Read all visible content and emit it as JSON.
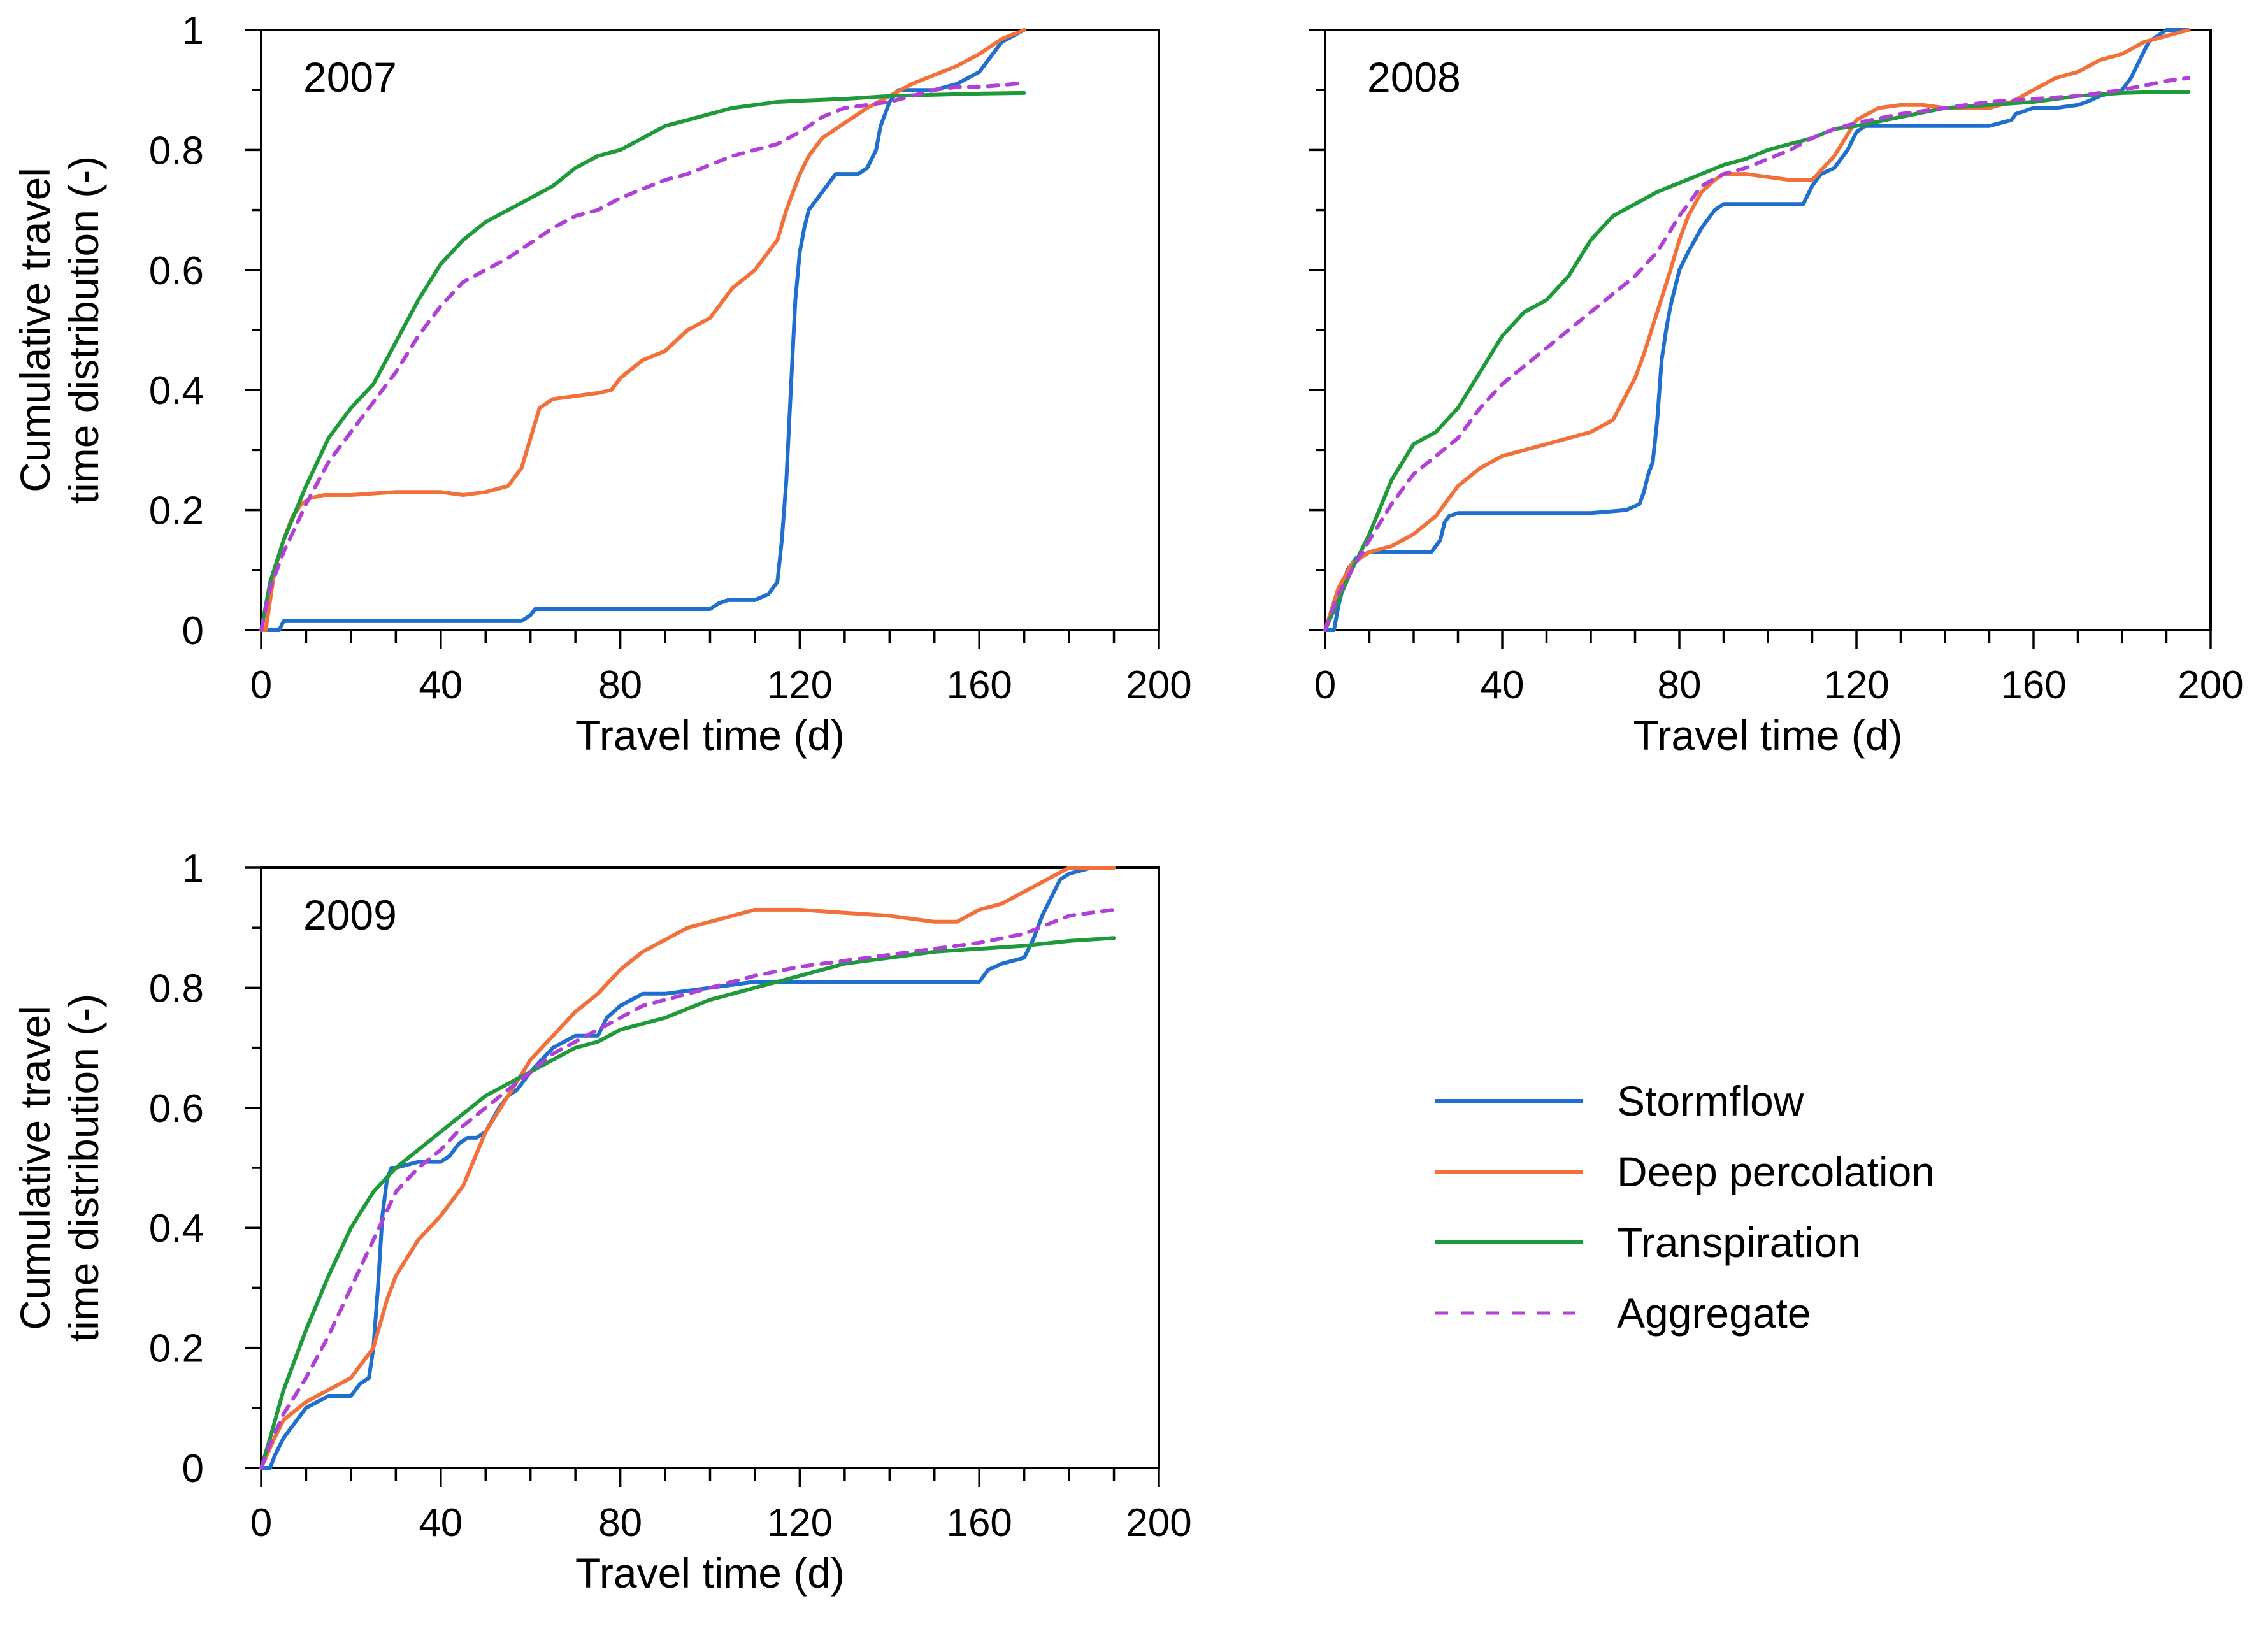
{
  "colors": {
    "Stormflow": "#1f6fcf",
    "Deep percolation": "#f2703a",
    "Transpiration": "#1f9a3a",
    "Aggregate": "#b040d8"
  },
  "legend": [
    {
      "name": "Stormflow",
      "dashed": false
    },
    {
      "name": "Deep percolation",
      "dashed": false
    },
    {
      "name": "Transpiration",
      "dashed": false
    },
    {
      "name": "Aggregate",
      "dashed": true
    }
  ],
  "chart_data": [
    {
      "type": "line",
      "title": "2007",
      "xlabel": "Travel time (d)",
      "ylabel": [
        "Cumulative travel",
        "time distribution (-)"
      ],
      "xlim": [
        0,
        200
      ],
      "ylim": [
        0,
        1
      ],
      "xticks": [
        0,
        40,
        80,
        120,
        160,
        200
      ],
      "yticks": [
        0,
        0.2,
        0.4,
        0.6,
        0.8,
        1
      ],
      "ytick_labels": [
        "0",
        "0.2",
        "0.4",
        "0.6",
        "0.8",
        "1"
      ],
      "series": [
        {
          "name": "Stormflow",
          "x": [
            0,
            4,
            5,
            6,
            58,
            60,
            61,
            100,
            102,
            104,
            110,
            113,
            115,
            116,
            117,
            118,
            119,
            120,
            121,
            122,
            123,
            124,
            126,
            128,
            130,
            133,
            135,
            137,
            138,
            139,
            140,
            141,
            142,
            145,
            150,
            155,
            160,
            165,
            170
          ],
          "y": [
            0,
            0,
            0.015,
            0.015,
            0.015,
            0.025,
            0.035,
            0.035,
            0.045,
            0.05,
            0.05,
            0.06,
            0.08,
            0.15,
            0.25,
            0.4,
            0.55,
            0.63,
            0.67,
            0.7,
            0.71,
            0.72,
            0.74,
            0.76,
            0.76,
            0.76,
            0.77,
            0.8,
            0.84,
            0.86,
            0.88,
            0.89,
            0.9,
            0.9,
            0.9,
            0.91,
            0.93,
            0.98,
            1.0
          ]
        },
        {
          "name": "Deep percolation",
          "x": [
            0,
            1,
            2,
            3,
            5,
            7,
            9,
            11,
            14,
            20,
            30,
            40,
            45,
            50,
            55,
            58,
            60,
            62,
            65,
            70,
            75,
            78,
            80,
            85,
            90,
            95,
            100,
            105,
            110,
            112,
            115,
            117,
            118,
            119,
            120,
            122,
            125,
            130,
            135,
            140,
            145,
            150,
            155,
            160,
            165,
            170
          ],
          "y": [
            0,
            0,
            0.05,
            0.1,
            0.15,
            0.19,
            0.21,
            0.22,
            0.225,
            0.225,
            0.23,
            0.23,
            0.225,
            0.23,
            0.24,
            0.27,
            0.32,
            0.37,
            0.385,
            0.39,
            0.395,
            0.4,
            0.42,
            0.45,
            0.465,
            0.5,
            0.52,
            0.57,
            0.6,
            0.62,
            0.65,
            0.7,
            0.72,
            0.74,
            0.76,
            0.79,
            0.82,
            0.845,
            0.87,
            0.89,
            0.91,
            0.925,
            0.94,
            0.96,
            0.985,
            1.0
          ]
        },
        {
          "name": "Transpiration",
          "x": [
            0,
            2,
            5,
            10,
            15,
            20,
            25,
            30,
            35,
            40,
            45,
            50,
            55,
            60,
            65,
            70,
            75,
            80,
            85,
            90,
            95,
            100,
            105,
            110,
            115,
            120,
            130,
            140,
            150,
            160,
            170
          ],
          "y": [
            0,
            0.08,
            0.15,
            0.24,
            0.32,
            0.37,
            0.41,
            0.48,
            0.55,
            0.61,
            0.65,
            0.68,
            0.7,
            0.72,
            0.74,
            0.77,
            0.79,
            0.8,
            0.82,
            0.84,
            0.85,
            0.86,
            0.87,
            0.875,
            0.88,
            0.882,
            0.885,
            0.89,
            0.892,
            0.894,
            0.895
          ]
        },
        {
          "name": "Aggregate",
          "x": [
            0,
            2,
            5,
            10,
            15,
            20,
            25,
            30,
            35,
            40,
            45,
            50,
            55,
            60,
            65,
            70,
            75,
            80,
            85,
            90,
            95,
            100,
            105,
            110,
            115,
            120,
            125,
            130,
            135,
            140,
            145,
            150,
            155,
            160,
            165,
            170
          ],
          "y": [
            0,
            0.07,
            0.13,
            0.21,
            0.28,
            0.33,
            0.38,
            0.43,
            0.49,
            0.54,
            0.58,
            0.6,
            0.62,
            0.645,
            0.67,
            0.69,
            0.7,
            0.72,
            0.735,
            0.75,
            0.76,
            0.775,
            0.79,
            0.8,
            0.81,
            0.83,
            0.855,
            0.87,
            0.875,
            0.88,
            0.89,
            0.9,
            0.905,
            0.905,
            0.908,
            0.912
          ]
        }
      ]
    },
    {
      "type": "line",
      "title": "2008",
      "xlabel": "Travel time (d)",
      "ylabel": [
        "",
        ""
      ],
      "xlim": [
        0,
        200
      ],
      "ylim": [
        0,
        1
      ],
      "xticks": [
        0,
        40,
        80,
        120,
        160,
        200
      ],
      "yticks": [
        0,
        0.2,
        0.4,
        0.6,
        0.8,
        1
      ],
      "ytick_labels": [],
      "series": [
        {
          "name": "Stormflow",
          "x": [
            0,
            2,
            3,
            5,
            7,
            10,
            15,
            20,
            24,
            26,
            27,
            28,
            30,
            40,
            50,
            60,
            68,
            71,
            72,
            73,
            74,
            75,
            76,
            77,
            78,
            79,
            80,
            82,
            85,
            88,
            90,
            100,
            108,
            110,
            112,
            115,
            118,
            120,
            122,
            125,
            130,
            140,
            150,
            155,
            156,
            158,
            160,
            165,
            170,
            172,
            175,
            180,
            182,
            184,
            186,
            190,
            195
          ],
          "y": [
            0,
            0,
            0.04,
            0.1,
            0.12,
            0.13,
            0.13,
            0.13,
            0.13,
            0.15,
            0.18,
            0.19,
            0.195,
            0.195,
            0.195,
            0.195,
            0.2,
            0.21,
            0.23,
            0.26,
            0.28,
            0.35,
            0.45,
            0.5,
            0.54,
            0.57,
            0.6,
            0.63,
            0.67,
            0.7,
            0.71,
            0.71,
            0.71,
            0.74,
            0.76,
            0.77,
            0.8,
            0.83,
            0.84,
            0.84,
            0.84,
            0.84,
            0.84,
            0.85,
            0.86,
            0.865,
            0.87,
            0.87,
            0.875,
            0.88,
            0.89,
            0.9,
            0.92,
            0.95,
            0.98,
            1.0,
            1.0
          ]
        },
        {
          "name": "Deep percolation",
          "x": [
            0,
            3,
            6,
            10,
            15,
            20,
            25,
            30,
            35,
            40,
            45,
            50,
            55,
            60,
            65,
            70,
            72,
            75,
            78,
            80,
            82,
            85,
            88,
            90,
            95,
            100,
            105,
            110,
            115,
            120,
            125,
            130,
            135,
            140,
            145,
            150,
            155,
            160,
            165,
            170,
            175,
            180,
            185,
            190,
            195
          ],
          "y": [
            0,
            0.07,
            0.11,
            0.13,
            0.14,
            0.16,
            0.19,
            0.24,
            0.27,
            0.29,
            0.3,
            0.31,
            0.32,
            0.33,
            0.35,
            0.42,
            0.46,
            0.53,
            0.6,
            0.65,
            0.69,
            0.73,
            0.75,
            0.76,
            0.76,
            0.755,
            0.75,
            0.75,
            0.79,
            0.85,
            0.87,
            0.875,
            0.875,
            0.87,
            0.87,
            0.87,
            0.88,
            0.9,
            0.92,
            0.93,
            0.95,
            0.96,
            0.98,
            0.99,
            1.0
          ]
        },
        {
          "name": "Transpiration",
          "x": [
            0,
            3,
            6,
            10,
            15,
            20,
            25,
            30,
            35,
            40,
            45,
            50,
            55,
            60,
            65,
            70,
            75,
            80,
            85,
            90,
            95,
            100,
            105,
            110,
            115,
            120,
            130,
            140,
            150,
            160,
            170,
            180,
            190,
            195
          ],
          "y": [
            0,
            0.05,
            0.1,
            0.16,
            0.25,
            0.31,
            0.33,
            0.37,
            0.43,
            0.49,
            0.53,
            0.55,
            0.59,
            0.65,
            0.69,
            0.71,
            0.73,
            0.745,
            0.76,
            0.775,
            0.785,
            0.8,
            0.81,
            0.82,
            0.835,
            0.84,
            0.855,
            0.87,
            0.875,
            0.88,
            0.89,
            0.895,
            0.897,
            0.897
          ]
        },
        {
          "name": "Aggregate",
          "x": [
            0,
            3,
            6,
            10,
            15,
            20,
            25,
            30,
            35,
            40,
            45,
            50,
            55,
            60,
            65,
            70,
            75,
            80,
            85,
            90,
            95,
            100,
            105,
            110,
            115,
            120,
            130,
            140,
            150,
            160,
            170,
            180,
            190,
            195
          ],
          "y": [
            0,
            0.06,
            0.1,
            0.15,
            0.21,
            0.26,
            0.29,
            0.32,
            0.37,
            0.41,
            0.44,
            0.47,
            0.5,
            0.53,
            0.56,
            0.59,
            0.63,
            0.69,
            0.74,
            0.76,
            0.77,
            0.785,
            0.8,
            0.82,
            0.835,
            0.845,
            0.86,
            0.87,
            0.88,
            0.885,
            0.89,
            0.9,
            0.915,
            0.92
          ]
        }
      ]
    },
    {
      "type": "line",
      "title": "2009",
      "xlabel": "Travel time (d)",
      "ylabel": [
        "Cumulative travel",
        "time distribution (-)"
      ],
      "xlim": [
        0,
        200
      ],
      "ylim": [
        0,
        1
      ],
      "xticks": [
        0,
        40,
        80,
        120,
        160,
        200
      ],
      "yticks": [
        0,
        0.2,
        0.4,
        0.6,
        0.8,
        1
      ],
      "ytick_labels": [
        "0",
        "0.2",
        "0.4",
        "0.6",
        "0.8",
        "1"
      ],
      "series": [
        {
          "name": "Stormflow",
          "x": [
            0,
            2,
            3,
            5,
            8,
            10,
            15,
            20,
            22,
            24,
            25,
            26,
            27,
            28,
            29,
            30,
            35,
            40,
            42,
            44,
            46,
            48,
            50,
            53,
            55,
            57,
            60,
            65,
            70,
            75,
            77,
            80,
            85,
            90,
            100,
            110,
            120,
            130,
            140,
            150,
            155,
            160,
            162,
            165,
            170,
            172,
            174,
            176,
            178,
            180,
            185,
            190
          ],
          "y": [
            0,
            0,
            0.02,
            0.05,
            0.08,
            0.1,
            0.12,
            0.12,
            0.14,
            0.15,
            0.2,
            0.3,
            0.42,
            0.48,
            0.5,
            0.5,
            0.51,
            0.51,
            0.52,
            0.54,
            0.55,
            0.55,
            0.56,
            0.6,
            0.62,
            0.63,
            0.66,
            0.7,
            0.72,
            0.72,
            0.75,
            0.77,
            0.79,
            0.79,
            0.8,
            0.81,
            0.81,
            0.81,
            0.81,
            0.81,
            0.81,
            0.81,
            0.83,
            0.84,
            0.85,
            0.88,
            0.92,
            0.95,
            0.98,
            0.99,
            1.0,
            1.0
          ]
        },
        {
          "name": "Deep percolation",
          "x": [
            0,
            3,
            5,
            10,
            15,
            20,
            25,
            28,
            30,
            35,
            40,
            45,
            50,
            55,
            60,
            65,
            70,
            75,
            80,
            85,
            90,
            95,
            100,
            105,
            110,
            115,
            120,
            130,
            140,
            150,
            155,
            160,
            165,
            170,
            175,
            180,
            185,
            190
          ],
          "y": [
            0,
            0.05,
            0.08,
            0.11,
            0.13,
            0.15,
            0.2,
            0.28,
            0.32,
            0.38,
            0.42,
            0.47,
            0.56,
            0.62,
            0.68,
            0.72,
            0.76,
            0.79,
            0.83,
            0.86,
            0.88,
            0.9,
            0.91,
            0.92,
            0.93,
            0.93,
            0.93,
            0.925,
            0.92,
            0.91,
            0.91,
            0.93,
            0.94,
            0.96,
            0.98,
            1.0,
            1.0,
            1.0
          ]
        },
        {
          "name": "Transpiration",
          "x": [
            0,
            2,
            5,
            10,
            15,
            20,
            25,
            30,
            35,
            40,
            45,
            50,
            55,
            60,
            65,
            70,
            75,
            80,
            85,
            90,
            100,
            110,
            120,
            130,
            140,
            150,
            160,
            170,
            180,
            190
          ],
          "y": [
            0,
            0.05,
            0.13,
            0.23,
            0.32,
            0.4,
            0.46,
            0.5,
            0.53,
            0.56,
            0.59,
            0.62,
            0.64,
            0.66,
            0.68,
            0.7,
            0.71,
            0.73,
            0.74,
            0.75,
            0.78,
            0.8,
            0.82,
            0.84,
            0.85,
            0.86,
            0.865,
            0.87,
            0.878,
            0.883
          ]
        },
        {
          "name": "Aggregate",
          "x": [
            0,
            2,
            5,
            10,
            15,
            20,
            25,
            30,
            35,
            40,
            45,
            50,
            55,
            60,
            65,
            70,
            75,
            80,
            85,
            90,
            100,
            110,
            120,
            130,
            140,
            150,
            160,
            170,
            180,
            190
          ],
          "y": [
            0,
            0.04,
            0.09,
            0.15,
            0.22,
            0.3,
            0.38,
            0.46,
            0.5,
            0.53,
            0.57,
            0.6,
            0.63,
            0.66,
            0.69,
            0.71,
            0.73,
            0.75,
            0.77,
            0.78,
            0.8,
            0.82,
            0.835,
            0.845,
            0.855,
            0.865,
            0.875,
            0.89,
            0.92,
            0.93
          ]
        }
      ]
    }
  ]
}
